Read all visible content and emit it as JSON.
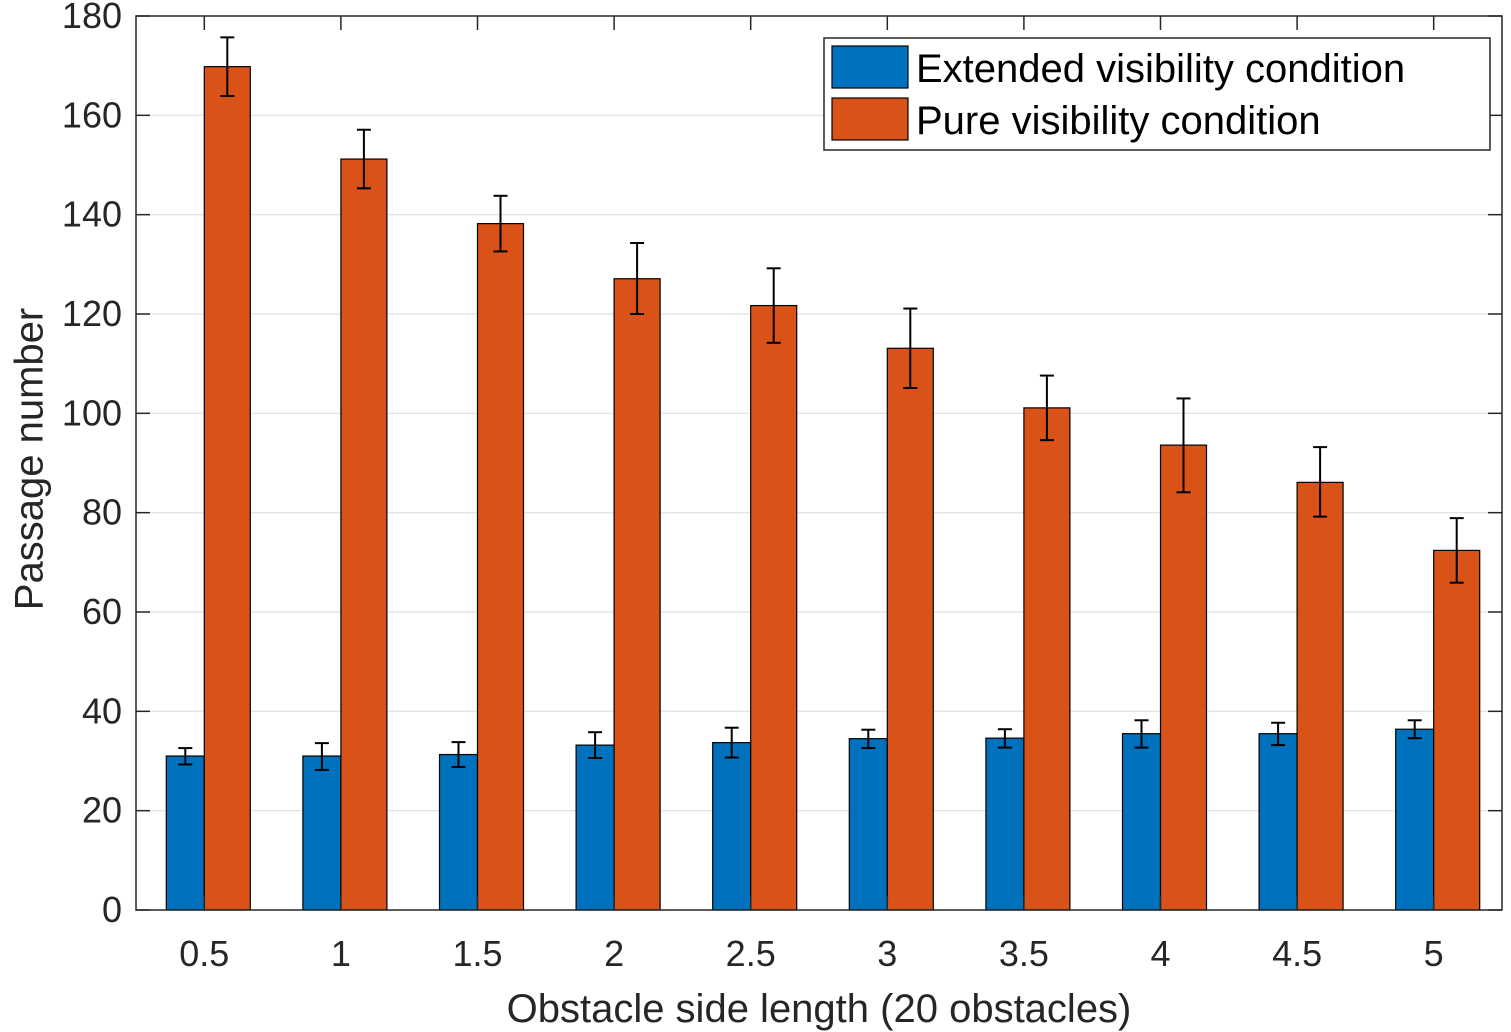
{
  "chart_data": {
    "type": "bar",
    "xlabel": "Obstacle side length (20 obstacles)",
    "ylabel": "Passage number",
    "categories": [
      "0.5",
      "1",
      "1.5",
      "2",
      "2.5",
      "3",
      "3.5",
      "4",
      "4.5",
      "5"
    ],
    "ylim": [
      0,
      180
    ],
    "yticks": [
      "0",
      "20",
      "40",
      "60",
      "80",
      "100",
      "120",
      "140",
      "160",
      "180"
    ],
    "grid": "horizontal",
    "legend_position": "top-right",
    "series": [
      {
        "name": "Extended visibility condition",
        "color": "#0072BD",
        "values": [
          31,
          31,
          31.3,
          33.2,
          33.7,
          34.5,
          34.6,
          35.5,
          35.5,
          36.4
        ],
        "error_low": [
          29.3,
          28.2,
          28.8,
          30.6,
          30.7,
          32.6,
          32.7,
          32.7,
          33.2,
          34.6
        ],
        "error_high": [
          32.6,
          33.6,
          33.8,
          35.8,
          36.7,
          36.3,
          36.4,
          38.2,
          37.7,
          38.2
        ]
      },
      {
        "name": "Pure visibility condition",
        "color": "#D95319",
        "values": [
          169.8,
          151.2,
          138.2,
          127.1,
          121.7,
          113.1,
          101.1,
          93.6,
          86.1,
          72.4
        ],
        "error_low": [
          163.9,
          145.3,
          132.6,
          120,
          114.2,
          105.1,
          94.6,
          84.1,
          79.2,
          65.9
        ],
        "error_high": [
          175.7,
          157.1,
          143.8,
          134.3,
          129.2,
          121.1,
          107.6,
          103,
          93.2,
          78.9
        ]
      }
    ]
  }
}
